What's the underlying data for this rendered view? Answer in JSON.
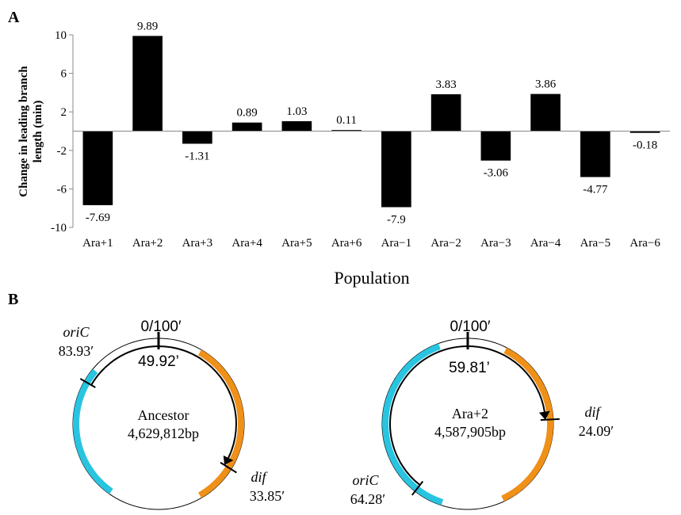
{
  "panel_a": {
    "label": "A",
    "chart_data": {
      "type": "bar",
      "categories": [
        "Ara+1",
        "Ara+2",
        "Ara+3",
        "Ara+4",
        "Ara+5",
        "Ara+6",
        "Ara−1",
        "Ara−2",
        "Ara−3",
        "Ara−4",
        "Ara−5",
        "Ara−6"
      ],
      "values": [
        -7.69,
        9.89,
        -1.31,
        0.89,
        1.03,
        0.11,
        -7.9,
        3.83,
        -3.06,
        3.86,
        -4.77,
        -0.18
      ],
      "value_labels": [
        "-7.69",
        "9.89",
        "-1.31",
        "0.89",
        "1.03",
        "0.11",
        "-7.9",
        "3.83",
        "-3.06",
        "3.86",
        "-4.77",
        "-0.18"
      ],
      "title": "",
      "xlabel": "Population",
      "ylabel_lines": [
        "Change in leading branch",
        "length (min)"
      ],
      "ylim": [
        -10,
        10
      ],
      "yticks": [
        10,
        6,
        2,
        -2,
        -6,
        -10
      ],
      "ytick_labels": [
        "10",
        "6",
        "2",
        "-2",
        "-6",
        "-10"
      ],
      "bar_color": "#000000",
      "grid": false
    }
  },
  "panel_b": {
    "label": "B",
    "colors": {
      "cyan": "#29c4e0",
      "orange": "#ef9019",
      "line": "#000000"
    },
    "maps": [
      {
        "top_label": "0/100′",
        "inner_label": "49.92’",
        "name": "Ancestor",
        "size": "4,629,812bp",
        "oric_name": "oriC",
        "oric_pos": "83.93′",
        "dif_name": "dif",
        "dif_pos": "33.85′"
      },
      {
        "top_label": "0/100′",
        "inner_label": "59.81’",
        "name": "Ara+2",
        "size": "4,587,905bp",
        "oric_name": "oriC",
        "oric_pos": "64.28′",
        "dif_name": "dif",
        "dif_pos": "24.09′"
      }
    ]
  }
}
